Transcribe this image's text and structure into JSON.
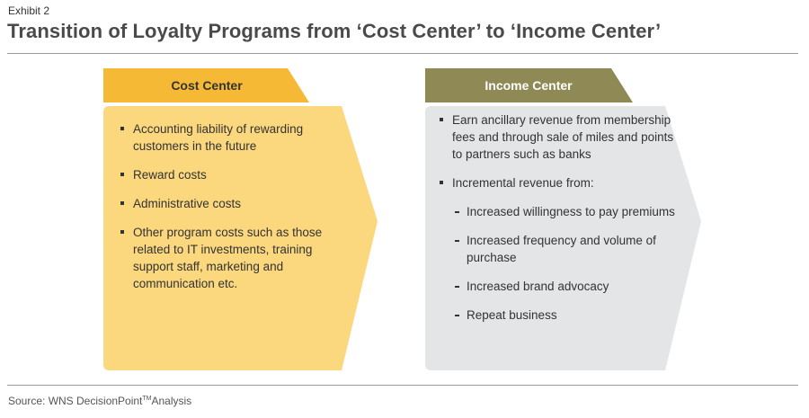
{
  "exhibit_label": "Exhibit 2",
  "title": "Transition of Loyalty Programs from ‘Cost Center’ to ‘Income Center’",
  "colors": {
    "cost_header": "#f5b935",
    "cost_body": "#fbd77d",
    "income_header": "#8f8a55",
    "income_body": "#e3e5e6"
  },
  "cost_center": {
    "header": "Cost Center",
    "items": [
      "Accounting liability of rewarding customers in the future",
      "Reward costs",
      "Administrative costs",
      "Other program costs such as those related to IT investments, training support staff, marketing and communication etc."
    ]
  },
  "income_center": {
    "header": "Income Center",
    "items": [
      "Earn ancillary revenue from membership fees and through sale of miles and points to partners such as  banks",
      "Incremental revenue from:"
    ],
    "sub_items": [
      "Increased willingness to pay premiums",
      "Increased frequency and volume of purchase",
      "Increased brand advocacy",
      "Repeat business"
    ]
  },
  "source": {
    "prefix": "Source: WNS DecisionPoint",
    "tm": "TM",
    "suffix": "Analysis"
  }
}
